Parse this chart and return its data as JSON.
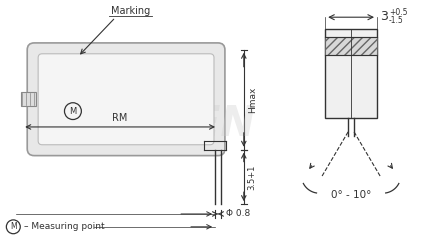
{
  "bg_color": "#ffffff",
  "dark": "#333333",
  "gray": "#888888",
  "light_gray": "#e0e0e0",
  "med_gray": "#cccccc",
  "watermark_color": "#d0d0d0",
  "marking_text": "Marking",
  "rm_text": "RM",
  "hmax_text": "Hmax",
  "phi_text": "Φ 0.8",
  "dim35_text": "3.5+1",
  "measuring_label": "– Measuring point",
  "dim3_text": "3",
  "dim3_plus": "+0.5",
  "dim3_minus": "-1.5",
  "angle_text": "0° - 10°",
  "token_text": "TOKEN"
}
